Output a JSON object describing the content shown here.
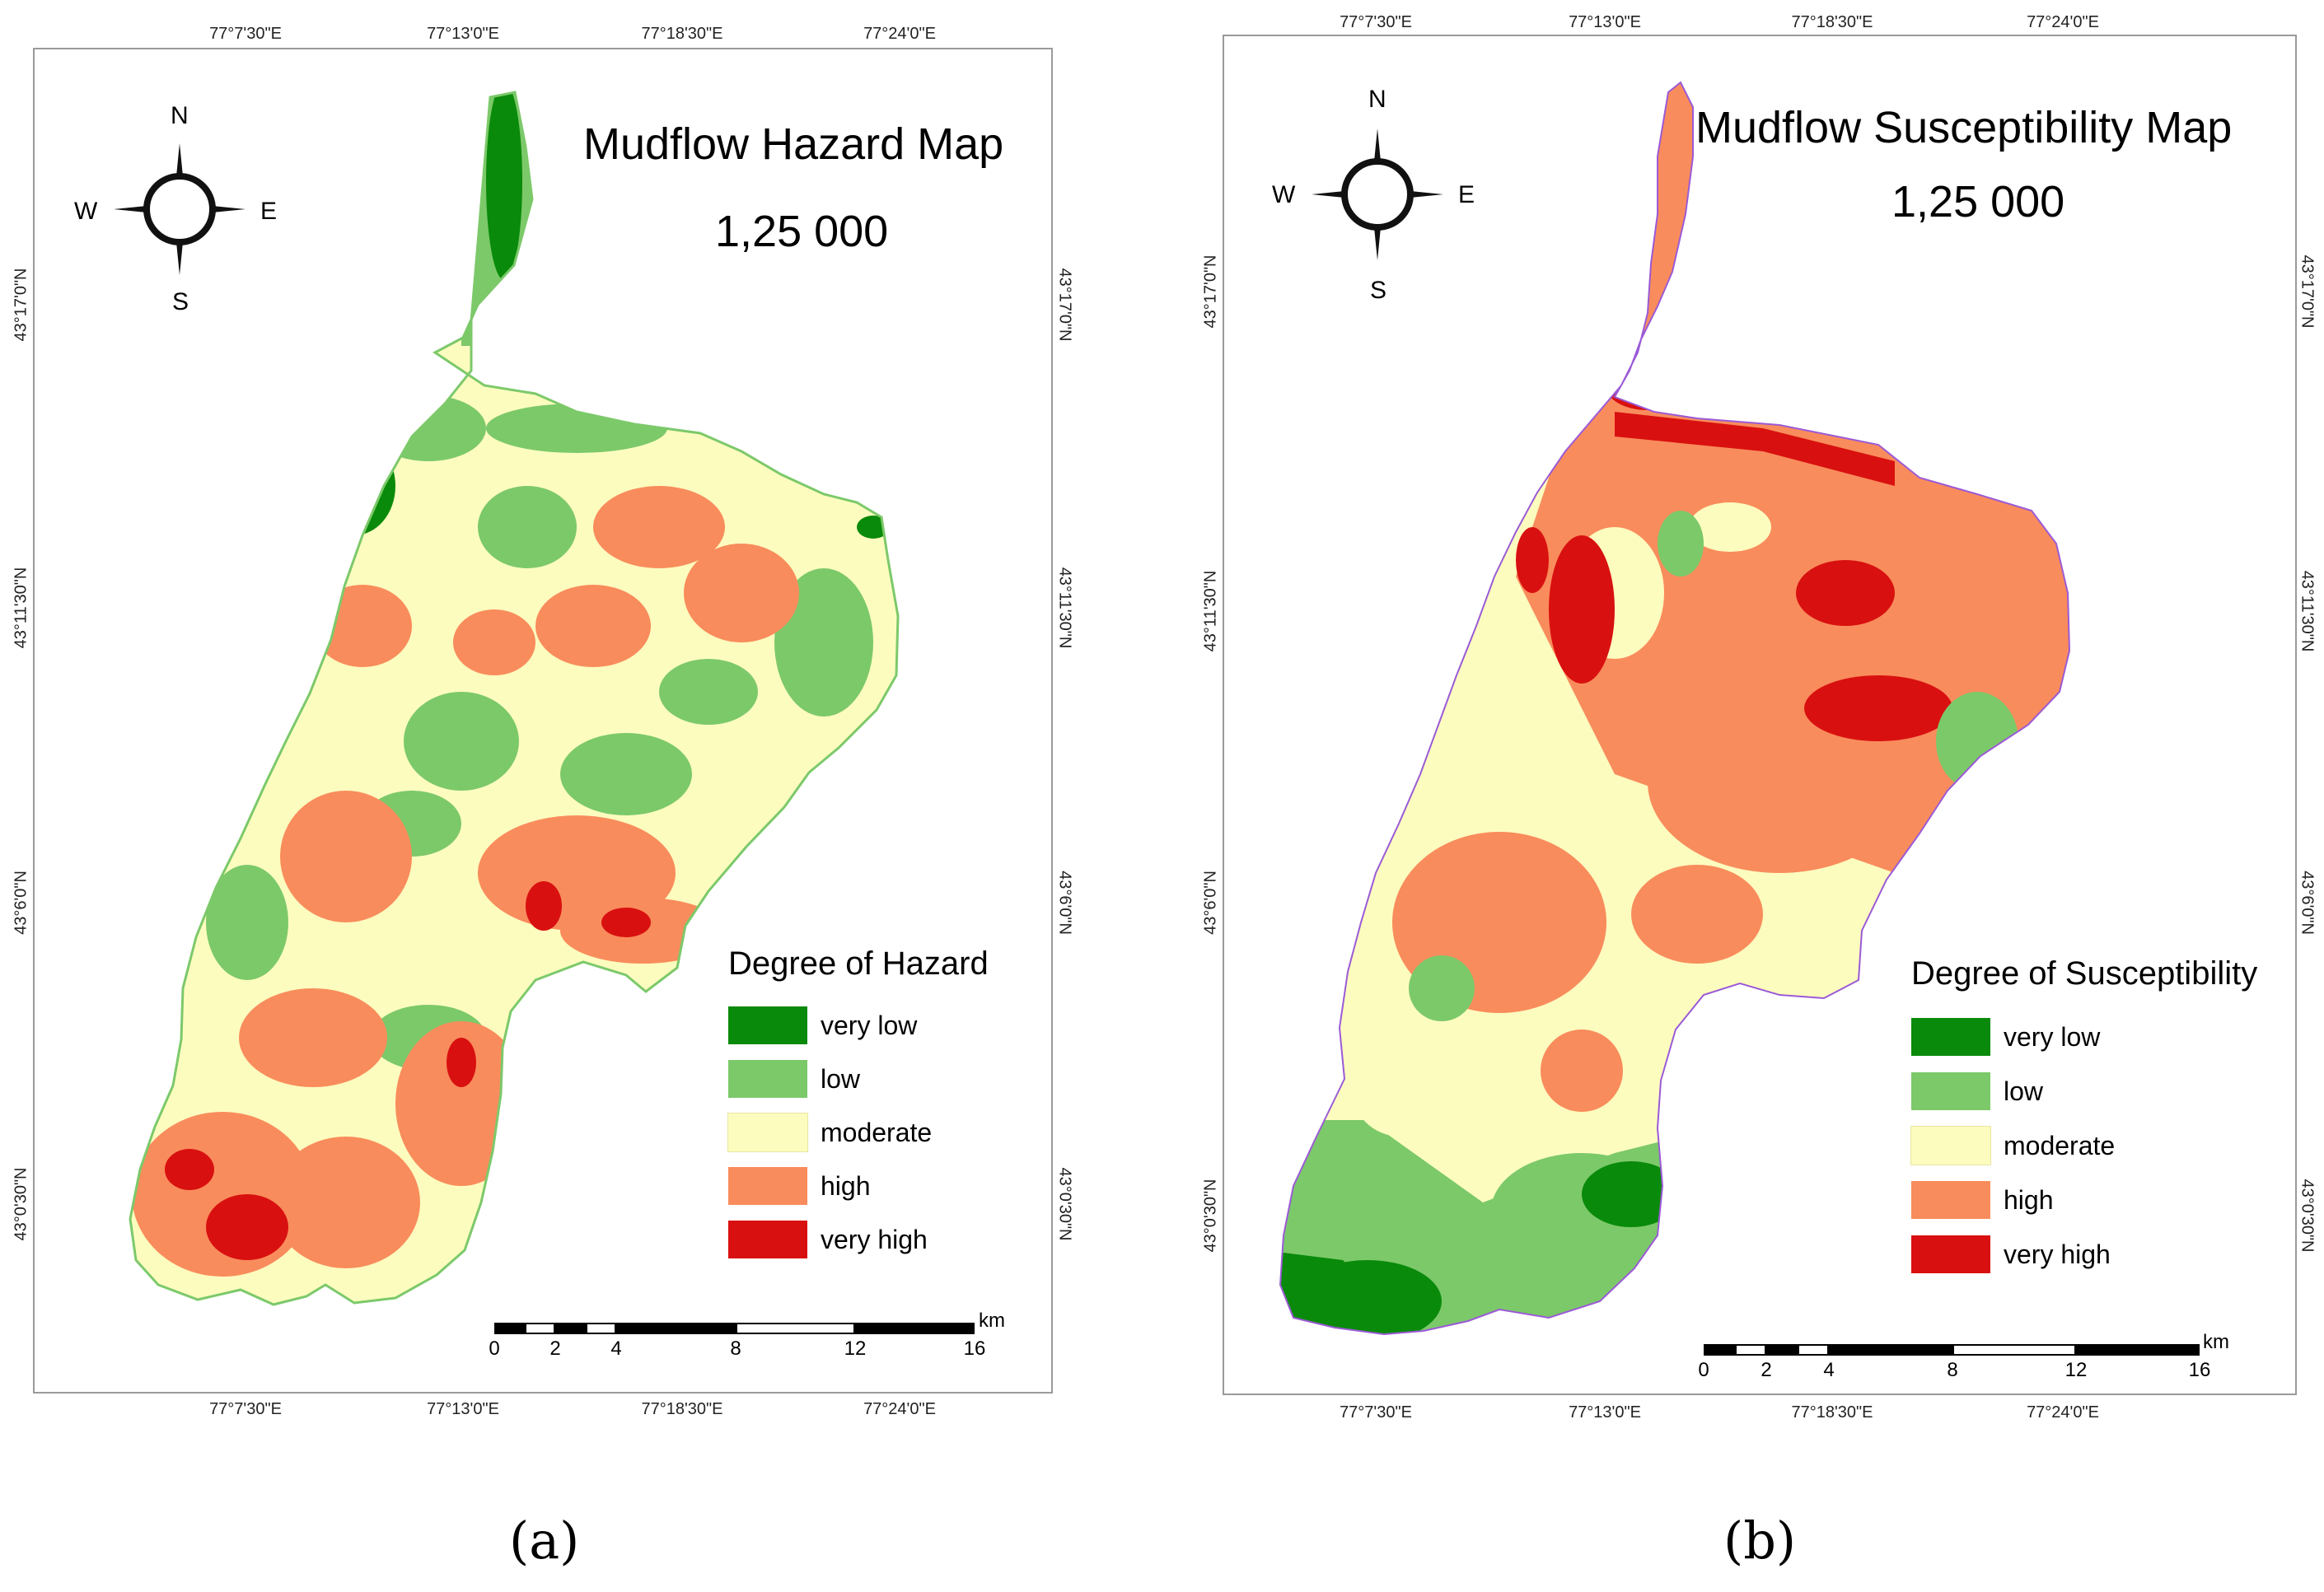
{
  "panels": [
    {
      "id": "a",
      "title": "Mudflow Hazard Map",
      "scale_text": "1,25 000",
      "legend_title": "Degree of Hazard",
      "panel_label": "(a)",
      "coords": {
        "top": [
          "77°7'30\"E",
          "77°13'0\"E",
          "77°18'30\"E",
          "77°24'0\"E"
        ],
        "bottom": [
          "77°7'30\"E",
          "77°13'0\"E",
          "77°18'30\"E",
          "77°24'0\"E"
        ],
        "left": [
          "43°17'0\"N",
          "43°11'30\"N",
          "43°6'0\"N",
          "43°0'30\"N"
        ],
        "right": [
          "43°17'0\"N",
          "43°11'30\"N",
          "43°6'0\"N",
          "43°0'30\"N"
        ]
      }
    },
    {
      "id": "b",
      "title": "Mudflow Susceptibility Map",
      "scale_text": "1,25 000",
      "legend_title": "Degree of Susceptibility",
      "panel_label": "(b)",
      "coords": {
        "top": [
          "77°7'30\"E",
          "77°13'0\"E",
          "77°18'30\"E",
          "77°24'0\"E"
        ],
        "bottom": [
          "77°7'30\"E",
          "77°13'0\"E",
          "77°18'30\"E",
          "77°24'0\"E"
        ],
        "left": [
          "43°17'0\"N",
          "43°11'30\"N",
          "43°6'0\"N",
          "43°0'30\"N"
        ],
        "right": [
          "43°17'0\"N",
          "43°11'30\"N",
          "43°6'0\"N",
          "43°0'30\"N"
        ]
      }
    }
  ],
  "compass": {
    "north": "N",
    "south": "S",
    "east": "E",
    "west": "W"
  },
  "legend_classes": [
    {
      "label": "very low",
      "color": "#0a8a0a"
    },
    {
      "label": "low",
      "color": "#7cc96a"
    },
    {
      "label": "moderate",
      "color": "#fdfcbf"
    },
    {
      "label": "high",
      "color": "#f98c5c"
    },
    {
      "label": "very high",
      "color": "#d91010"
    }
  ],
  "scalebar": {
    "ticks": [
      "0",
      "2",
      "4",
      "8",
      "12",
      "16"
    ],
    "unit": "km"
  }
}
